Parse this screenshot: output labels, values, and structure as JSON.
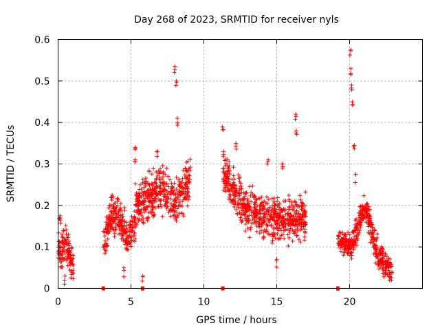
{
  "chart_data": {
    "type": "scatter",
    "title": "Day 268 of 2023, SRMTID for receiver nyls",
    "xlabel": "GPS time / hours",
    "ylabel": "SRMTID / TECUs",
    "xlim": [
      0,
      25
    ],
    "ylim": [
      0,
      0.6
    ],
    "x_ticks": [
      0,
      5,
      10,
      15,
      20
    ],
    "x_tick_labels": [
      "0",
      "5",
      "10",
      "15",
      "20"
    ],
    "y_ticks": [
      0,
      0.1,
      0.2,
      0.3,
      0.4,
      0.5,
      0.6
    ],
    "y_tick_labels": [
      "0",
      "0.1",
      "0.2",
      "0.3",
      "0.4",
      "0.5",
      "0.6"
    ],
    "grid": true,
    "marker": "+",
    "series_color": "#ff0000",
    "series": [
      {
        "name": "SRMTID",
        "segments": [
          {
            "t_start": 0.0,
            "t_end": 1.05,
            "base": [
              0.1,
              0.09,
              0.11,
              0.08,
              0.06
            ],
            "spread": 0.035,
            "peaks": [
              [
                0.1,
                0.17
              ],
              [
                0.15,
                0.175
              ],
              [
                0.35,
                0.14
              ],
              [
                0.45,
                0.03
              ]
            ]
          },
          {
            "t_start": 3.1,
            "t_end": 5.3,
            "base": [
              0.1,
              0.18,
              0.17,
              0.12,
              0.15
            ],
            "spread": 0.04,
            "peaks": [
              [
                3.7,
                0.225
              ],
              [
                4.5,
                0.05
              ],
              [
                5.3,
                0.34
              ]
            ]
          },
          {
            "t_start": 5.3,
            "t_end": 9.1,
            "base": [
              0.2,
              0.22,
              0.24,
              0.21,
              0.27
            ],
            "spread": 0.05,
            "peaks": [
              [
                5.3,
                0.31
              ],
              [
                6.8,
                0.33
              ],
              [
                8.0,
                0.535
              ],
              [
                8.1,
                0.5
              ],
              [
                8.2,
                0.41
              ],
              [
                5.8,
                0.03
              ]
            ]
          },
          {
            "t_start": 11.3,
            "t_end": 17.0,
            "base": [
              0.28,
              0.2,
              0.17,
              0.16,
              0.18
            ],
            "spread": 0.045,
            "peaks": [
              [
                11.3,
                0.39
              ],
              [
                11.35,
                0.33
              ],
              [
                12.2,
                0.35
              ],
              [
                14.4,
                0.31
              ],
              [
                15.0,
                0.07
              ],
              [
                15.4,
                0.3
              ],
              [
                16.3,
                0.42
              ],
              [
                16.35,
                0.38
              ]
            ]
          },
          {
            "t_start": 19.2,
            "t_end": 22.9,
            "base": [
              0.12,
              0.1,
              0.2,
              0.08,
              0.04
            ],
            "spread": 0.03,
            "peaks": [
              [
                20.05,
                0.575
              ],
              [
                20.1,
                0.53
              ],
              [
                20.15,
                0.49
              ],
              [
                20.2,
                0.45
              ],
              [
                20.3,
                0.345
              ],
              [
                20.4,
                0.275
              ]
            ]
          }
        ]
      }
    ],
    "gap_markers_x": [
      3.1,
      5.8,
      11.3,
      19.2
    ],
    "gap_markers_y": [
      0,
      0,
      0,
      0
    ]
  }
}
